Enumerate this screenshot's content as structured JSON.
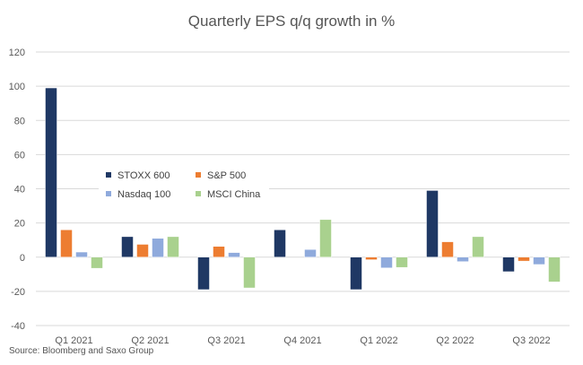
{
  "chart_data": {
    "type": "bar",
    "title": "Quarterly EPS q/q growth in %",
    "xlabel": "",
    "ylabel": "",
    "ylim": [
      -40,
      120
    ],
    "yticks": [
      -40,
      -20,
      0,
      20,
      40,
      60,
      80,
      100,
      120
    ],
    "grid": true,
    "legend_position": "upper-left",
    "categories": [
      "Q1 2021",
      "Q2 2021",
      "Q3 2021",
      "Q4 2021",
      "Q1 2022",
      "Q2 2022",
      "Q3 2022"
    ],
    "series": [
      {
        "name": "STOXX 600",
        "color": "#1f3864",
        "values": [
          99,
          12,
          -19,
          16,
          -19,
          39,
          -8.5
        ]
      },
      {
        "name": "S&P 500",
        "color": "#ed7d31",
        "values": [
          16,
          7.5,
          6.3,
          0,
          -1.5,
          9,
          -2.3
        ]
      },
      {
        "name": "Nasdaq 100",
        "color": "#8faadc",
        "values": [
          3,
          11,
          2.7,
          4.5,
          -6.3,
          -2.6,
          -4.3
        ]
      },
      {
        "name": "MSCI China",
        "color": "#a9d18e",
        "values": [
          -6.5,
          12,
          -18,
          22,
          -6,
          12,
          -14.5
        ]
      }
    ]
  },
  "source": "Source: Bloomberg and Saxo Group"
}
